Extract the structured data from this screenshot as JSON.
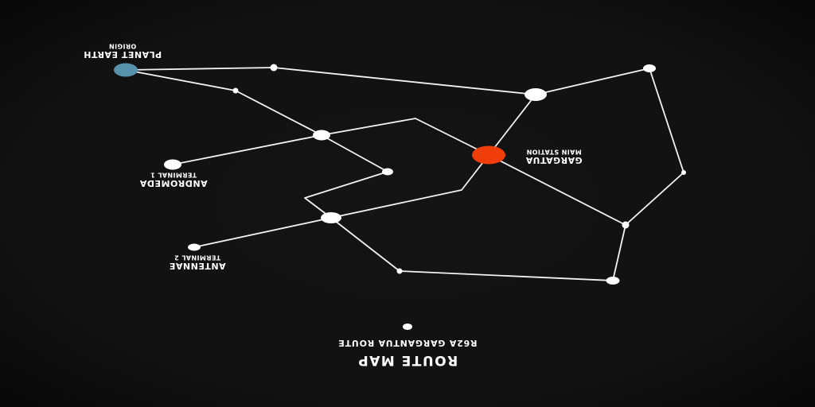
{
  "title": "ROUTE MAP",
  "subtitle": "R62A GARGANTUA ROUTE",
  "colors": {
    "background": "#111111",
    "line": "#f2f2f2",
    "node": "#ffffff",
    "origin": "#5792ad",
    "main_station": "#f03e0b"
  },
  "stops": {
    "planet_earth": {
      "name": "PLANET EARTH",
      "role": "ORIGIN"
    },
    "andromeda": {
      "name": "ANDROMEDA",
      "role": "TERMINAL 1"
    },
    "antennae": {
      "name": "ANTENNAE",
      "role": "TERMINAL 2"
    },
    "gargatua": {
      "name": "GARGATUA",
      "role": "MAIN STATION"
    }
  }
}
